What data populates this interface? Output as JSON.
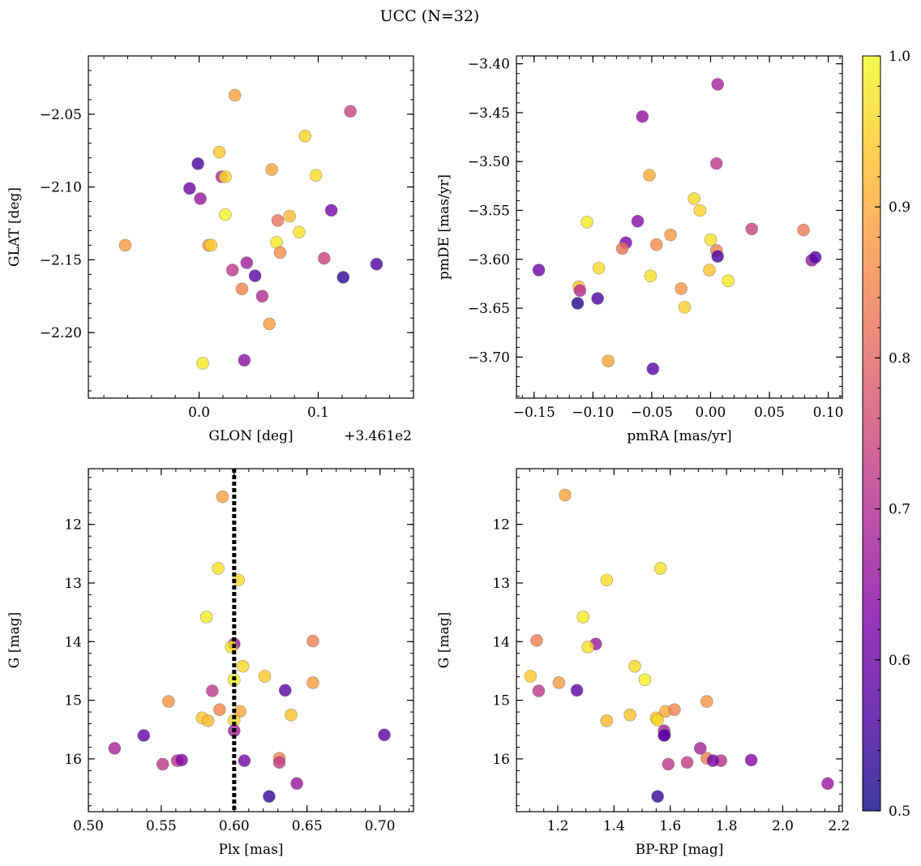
{
  "figure": {
    "title": "UCC (N=32)"
  },
  "colorbar": {
    "ticks": [
      "0.5",
      "0.6",
      "0.7",
      "0.8",
      "0.9",
      "1.0"
    ],
    "range": [
      0.5,
      1.0
    ],
    "colormap": "plasma"
  },
  "chart_data": [
    {
      "type": "scatter",
      "xlabel": "GLON [deg]",
      "ylabel": "GLAT [deg]",
      "x_offset_label": "+3.461e2",
      "xlim": [
        -0.093,
        0.18
      ],
      "ylim": [
        -2.245,
        -2.01
      ],
      "x_ticks": [
        {
          "v": 0.0,
          "label": "0.0"
        },
        {
          "v": 0.1,
          "label": "0.1"
        }
      ],
      "y_ticks": [
        {
          "v": -2.05,
          "label": "−2.05"
        },
        {
          "v": -2.1,
          "label": "−2.10"
        },
        {
          "v": -2.15,
          "label": "−2.15"
        },
        {
          "v": -2.2,
          "label": "−2.20"
        }
      ],
      "x_minor_step": 0.02,
      "y_minor_step": 0.01,
      "points": [
        {
          "x": -0.062,
          "y": -2.14,
          "p": 0.88
        },
        {
          "x": 0.03,
          "y": -2.037,
          "p": 0.89
        },
        {
          "x": 0.127,
          "y": -2.048,
          "p": 0.74
        },
        {
          "x": 0.089,
          "y": -2.065,
          "p": 0.95
        },
        {
          "x": 0.017,
          "y": -2.076,
          "p": 0.94
        },
        {
          "x": -0.001,
          "y": -2.084,
          "p": 0.56
        },
        {
          "x": 0.061,
          "y": -2.088,
          "p": 0.89
        },
        {
          "x": 0.019,
          "y": -2.093,
          "p": 0.7
        },
        {
          "x": 0.022,
          "y": -2.093,
          "p": 0.96
        },
        {
          "x": 0.098,
          "y": -2.092,
          "p": 0.96
        },
        {
          "x": -0.008,
          "y": -2.101,
          "p": 0.6
        },
        {
          "x": 0.001,
          "y": -2.108,
          "p": 0.66
        },
        {
          "x": 0.111,
          "y": -2.116,
          "p": 0.61
        },
        {
          "x": 0.022,
          "y": -2.119,
          "p": 0.99
        },
        {
          "x": 0.076,
          "y": -2.12,
          "p": 0.92
        },
        {
          "x": 0.066,
          "y": -2.123,
          "p": 0.82
        },
        {
          "x": 0.084,
          "y": -2.131,
          "p": 0.97
        },
        {
          "x": 0.065,
          "y": -2.138,
          "p": 0.98
        },
        {
          "x": 0.008,
          "y": -2.14,
          "p": 0.87
        },
        {
          "x": 0.01,
          "y": -2.14,
          "p": 0.95
        },
        {
          "x": 0.068,
          "y": -2.145,
          "p": 0.86
        },
        {
          "x": 0.105,
          "y": -2.149,
          "p": 0.74
        },
        {
          "x": 0.149,
          "y": -2.153,
          "p": 0.56
        },
        {
          "x": 0.04,
          "y": -2.152,
          "p": 0.67
        },
        {
          "x": 0.028,
          "y": -2.157,
          "p": 0.72
        },
        {
          "x": 0.047,
          "y": -2.161,
          "p": 0.57
        },
        {
          "x": 0.121,
          "y": -2.162,
          "p": 0.53
        },
        {
          "x": 0.036,
          "y": -2.17,
          "p": 0.85
        },
        {
          "x": 0.053,
          "y": -2.175,
          "p": 0.7
        },
        {
          "x": 0.059,
          "y": -2.194,
          "p": 0.88
        },
        {
          "x": 0.003,
          "y": -2.221,
          "p": 0.98
        },
        {
          "x": 0.038,
          "y": -2.219,
          "p": 0.64
        }
      ]
    },
    {
      "type": "scatter",
      "xlabel": "pmRA [mas/yr]",
      "ylabel": "pmDE [mas/yr]",
      "xlim": [
        -0.165,
        0.112
      ],
      "ylim": [
        -3.742,
        -3.392
      ],
      "x_ticks": [
        {
          "v": -0.15,
          "label": "−0.15"
        },
        {
          "v": -0.1,
          "label": "−0.10"
        },
        {
          "v": -0.05,
          "label": "−0.05"
        },
        {
          "v": 0.0,
          "label": "0.00"
        },
        {
          "v": 0.05,
          "label": "0.05"
        },
        {
          "v": 0.1,
          "label": "0.10"
        }
      ],
      "y_ticks": [
        {
          "v": -3.4,
          "label": "−3.40"
        },
        {
          "v": -3.45,
          "label": "−3.45"
        },
        {
          "v": -3.5,
          "label": "−3.50"
        },
        {
          "v": -3.55,
          "label": "−3.55"
        },
        {
          "v": -3.6,
          "label": "−3.60"
        },
        {
          "v": -3.65,
          "label": "−3.65"
        },
        {
          "v": -3.7,
          "label": "−3.70"
        }
      ],
      "x_minor_step": 0.01,
      "y_minor_step": 0.01,
      "points": [
        {
          "x": 0.006,
          "y": -3.421,
          "p": 0.68
        },
        {
          "x": -0.058,
          "y": -3.454,
          "p": 0.65
        },
        {
          "x": 0.005,
          "y": -3.502,
          "p": 0.72
        },
        {
          "x": -0.052,
          "y": -3.514,
          "p": 0.9
        },
        {
          "x": -0.014,
          "y": -3.538,
          "p": 0.96
        },
        {
          "x": -0.009,
          "y": -3.55,
          "p": 0.95
        },
        {
          "x": -0.105,
          "y": -3.562,
          "p": 0.98
        },
        {
          "x": -0.062,
          "y": -3.561,
          "p": 0.63
        },
        {
          "x": 0.035,
          "y": -3.569,
          "p": 0.74
        },
        {
          "x": 0.079,
          "y": -3.57,
          "p": 0.83
        },
        {
          "x": -0.034,
          "y": -3.575,
          "p": 0.88
        },
        {
          "x": 0.0,
          "y": -3.58,
          "p": 0.97
        },
        {
          "x": -0.072,
          "y": -3.583,
          "p": 0.62
        },
        {
          "x": -0.046,
          "y": -3.585,
          "p": 0.86
        },
        {
          "x": -0.075,
          "y": -3.589,
          "p": 0.82
        },
        {
          "x": 0.005,
          "y": -3.591,
          "p": 0.84
        },
        {
          "x": 0.006,
          "y": -3.597,
          "p": 0.56
        },
        {
          "x": 0.086,
          "y": -3.601,
          "p": 0.66
        },
        {
          "x": 0.089,
          "y": -3.598,
          "p": 0.57
        },
        {
          "x": -0.095,
          "y": -3.609,
          "p": 0.96
        },
        {
          "x": -0.146,
          "y": -3.611,
          "p": 0.6
        },
        {
          "x": -0.001,
          "y": -3.611,
          "p": 0.93
        },
        {
          "x": -0.051,
          "y": -3.617,
          "p": 0.97
        },
        {
          "x": 0.015,
          "y": -3.622,
          "p": 0.98
        },
        {
          "x": -0.112,
          "y": -3.628,
          "p": 0.93
        },
        {
          "x": -0.111,
          "y": -3.632,
          "p": 0.7
        },
        {
          "x": -0.025,
          "y": -3.63,
          "p": 0.87
        },
        {
          "x": -0.096,
          "y": -3.64,
          "p": 0.56
        },
        {
          "x": -0.113,
          "y": -3.645,
          "p": 0.52
        },
        {
          "x": -0.022,
          "y": -3.649,
          "p": 0.95
        },
        {
          "x": -0.087,
          "y": -3.704,
          "p": 0.89
        },
        {
          "x": -0.049,
          "y": -3.712,
          "p": 0.57
        }
      ]
    },
    {
      "type": "scatter",
      "xlabel": "Plx [mas]",
      "ylabel": "G [mag]",
      "xlim": [
        0.5,
        0.723
      ],
      "ylim": [
        16.9,
        11.05
      ],
      "y_inverted": true,
      "x_ticks": [
        {
          "v": 0.5,
          "label": "0.50"
        },
        {
          "v": 0.55,
          "label": "0.55"
        },
        {
          "v": 0.6,
          "label": "0.60"
        },
        {
          "v": 0.65,
          "label": "0.65"
        },
        {
          "v": 0.7,
          "label": "0.70"
        }
      ],
      "y_ticks": [
        {
          "v": 12,
          "label": "12"
        },
        {
          "v": 13,
          "label": "13"
        },
        {
          "v": 14,
          "label": "14"
        },
        {
          "v": 15,
          "label": "15"
        },
        {
          "v": 16,
          "label": "16"
        }
      ],
      "x_minor_step": 0.01,
      "y_minor_step": 0.2,
      "vline": {
        "x": 0.6
      },
      "points": [
        {
          "x": 0.592,
          "y": 11.53,
          "p": 0.89
        },
        {
          "x": 0.589,
          "y": 12.75,
          "p": 0.97
        },
        {
          "x": 0.603,
          "y": 12.95,
          "p": 0.96
        },
        {
          "x": 0.581,
          "y": 13.58,
          "p": 0.98
        },
        {
          "x": 0.654,
          "y": 13.99,
          "p": 0.84
        },
        {
          "x": 0.6,
          "y": 14.04,
          "p": 0.66
        },
        {
          "x": 0.598,
          "y": 14.09,
          "p": 0.97
        },
        {
          "x": 0.606,
          "y": 14.42,
          "p": 0.96
        },
        {
          "x": 0.621,
          "y": 14.59,
          "p": 0.94
        },
        {
          "x": 0.6,
          "y": 14.65,
          "p": 0.99
        },
        {
          "x": 0.654,
          "y": 14.7,
          "p": 0.88
        },
        {
          "x": 0.635,
          "y": 14.83,
          "p": 0.58
        },
        {
          "x": 0.585,
          "y": 14.84,
          "p": 0.72
        },
        {
          "x": 0.555,
          "y": 15.02,
          "p": 0.87
        },
        {
          "x": 0.604,
          "y": 15.19,
          "p": 0.9
        },
        {
          "x": 0.59,
          "y": 15.16,
          "p": 0.85
        },
        {
          "x": 0.639,
          "y": 15.25,
          "p": 0.93
        },
        {
          "x": 0.578,
          "y": 15.3,
          "p": 0.94
        },
        {
          "x": 0.582,
          "y": 15.35,
          "p": 0.92
        },
        {
          "x": 0.6,
          "y": 15.34,
          "p": 0.96
        },
        {
          "x": 0.6,
          "y": 15.52,
          "p": 0.68
        },
        {
          "x": 0.703,
          "y": 15.59,
          "p": 0.58
        },
        {
          "x": 0.538,
          "y": 15.6,
          "p": 0.59
        },
        {
          "x": 0.518,
          "y": 15.82,
          "p": 0.68
        },
        {
          "x": 0.631,
          "y": 15.99,
          "p": 0.84
        },
        {
          "x": 0.561,
          "y": 16.03,
          "p": 0.71
        },
        {
          "x": 0.564,
          "y": 16.02,
          "p": 0.63
        },
        {
          "x": 0.607,
          "y": 16.03,
          "p": 0.61
        },
        {
          "x": 0.551,
          "y": 16.09,
          "p": 0.72
        },
        {
          "x": 0.631,
          "y": 16.06,
          "p": 0.73
        },
        {
          "x": 0.643,
          "y": 16.42,
          "p": 0.66
        },
        {
          "x": 0.624,
          "y": 16.64,
          "p": 0.54
        }
      ]
    },
    {
      "type": "scatter",
      "xlabel": "BP-RP [mag]",
      "ylabel": "G [mag]",
      "xlim": [
        1.053,
        2.212
      ],
      "ylim": [
        16.9,
        11.05
      ],
      "y_inverted": true,
      "x_ticks": [
        {
          "v": 1.2,
          "label": "1.2"
        },
        {
          "v": 1.4,
          "label": "1.4"
        },
        {
          "v": 1.6,
          "label": "1.6"
        },
        {
          "v": 1.8,
          "label": "1.8"
        },
        {
          "v": 2.0,
          "label": "2.0"
        },
        {
          "v": 2.2,
          "label": "2.2"
        }
      ],
      "y_ticks": [
        {
          "v": 12,
          "label": "12"
        },
        {
          "v": 13,
          "label": "13"
        },
        {
          "v": 14,
          "label": "14"
        },
        {
          "v": 15,
          "label": "15"
        },
        {
          "v": 16,
          "label": "16"
        }
      ],
      "x_minor_step": 0.05,
      "y_minor_step": 0.2,
      "points": [
        {
          "x": 1.226,
          "y": 11.5,
          "p": 0.89
        },
        {
          "x": 1.565,
          "y": 12.75,
          "p": 0.97
        },
        {
          "x": 1.374,
          "y": 12.95,
          "p": 0.96
        },
        {
          "x": 1.29,
          "y": 13.58,
          "p": 0.98
        },
        {
          "x": 1.125,
          "y": 13.98,
          "p": 0.84
        },
        {
          "x": 1.335,
          "y": 14.04,
          "p": 0.66
        },
        {
          "x": 1.307,
          "y": 14.09,
          "p": 0.97
        },
        {
          "x": 1.474,
          "y": 14.42,
          "p": 0.96
        },
        {
          "x": 1.103,
          "y": 14.59,
          "p": 0.94
        },
        {
          "x": 1.51,
          "y": 14.65,
          "p": 0.99
        },
        {
          "x": 1.204,
          "y": 14.7,
          "p": 0.88
        },
        {
          "x": 1.268,
          "y": 14.83,
          "p": 0.58
        },
        {
          "x": 1.132,
          "y": 14.84,
          "p": 0.72
        },
        {
          "x": 1.73,
          "y": 15.02,
          "p": 0.87
        },
        {
          "x": 1.583,
          "y": 15.19,
          "p": 0.9
        },
        {
          "x": 1.615,
          "y": 15.16,
          "p": 0.85
        },
        {
          "x": 1.457,
          "y": 15.25,
          "p": 0.93
        },
        {
          "x": 1.55,
          "y": 15.3,
          "p": 0.94
        },
        {
          "x": 1.374,
          "y": 15.35,
          "p": 0.92
        },
        {
          "x": 1.555,
          "y": 15.34,
          "p": 0.96
        },
        {
          "x": 1.578,
          "y": 15.52,
          "p": 0.68
        },
        {
          "x": 1.58,
          "y": 15.59,
          "p": 0.58
        },
        {
          "x": 1.578,
          "y": 15.6,
          "p": 0.59
        },
        {
          "x": 1.707,
          "y": 15.82,
          "p": 0.68
        },
        {
          "x": 1.73,
          "y": 15.99,
          "p": 0.84
        },
        {
          "x": 1.78,
          "y": 16.03,
          "p": 0.71
        },
        {
          "x": 1.888,
          "y": 16.02,
          "p": 0.63
        },
        {
          "x": 1.752,
          "y": 16.03,
          "p": 0.61
        },
        {
          "x": 1.593,
          "y": 16.09,
          "p": 0.72
        },
        {
          "x": 1.66,
          "y": 16.06,
          "p": 0.73
        },
        {
          "x": 2.16,
          "y": 16.42,
          "p": 0.66
        },
        {
          "x": 1.555,
          "y": 16.64,
          "p": 0.54
        }
      ]
    }
  ]
}
